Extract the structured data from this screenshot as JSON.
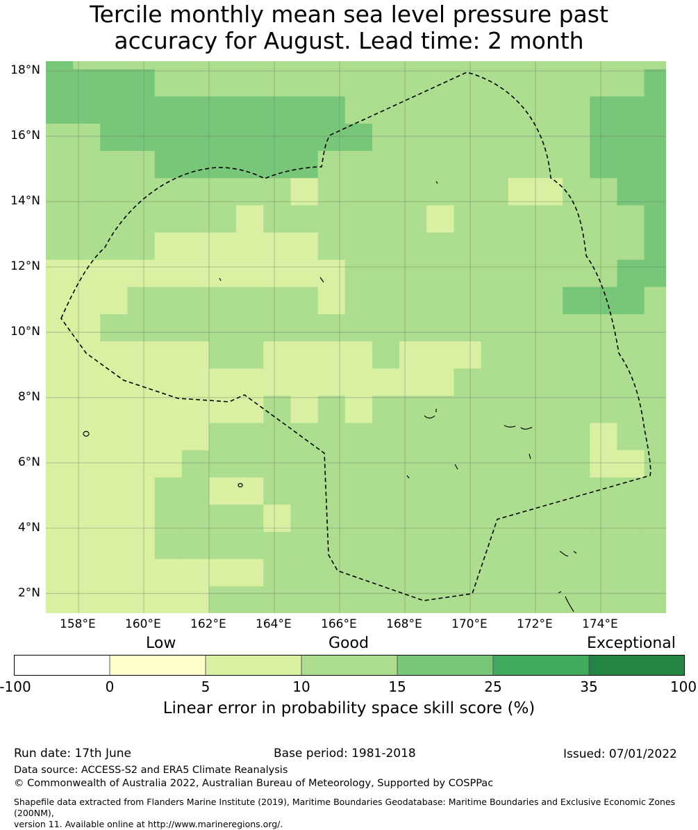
{
  "title": {
    "line1": "Tercile monthly mean sea level pressure past",
    "line2": "accuracy for August. Lead time: 2 month"
  },
  "map": {
    "x_ticks": [
      "158°E",
      "160°E",
      "162°E",
      "164°E",
      "166°E",
      "168°E",
      "170°E",
      "172°E",
      "174°E"
    ],
    "x_tick_values": [
      158,
      160,
      162,
      164,
      166,
      168,
      170,
      172,
      174
    ],
    "y_ticks": [
      "18°N",
      "16°N",
      "14°N",
      "12°N",
      "10°N",
      "8°N",
      "6°N",
      "4°N",
      "2°N"
    ],
    "y_tick_values": [
      18,
      16,
      14,
      12,
      10,
      8,
      6,
      4,
      2
    ],
    "lon_range": [
      157,
      176
    ],
    "lat_range": [
      1.4,
      18.3
    ],
    "grid": true,
    "boundary_style": "dashed",
    "grid_cells": {
      "lon_start": 157,
      "lat_start": 1.4,
      "cell_deg": 0.8333,
      "default_class": 3,
      "rows_from_bottom": [
        [
          2,
          2,
          2,
          2,
          2,
          2,
          3,
          3,
          3,
          3,
          3,
          3,
          3,
          3,
          3,
          3,
          3,
          3,
          3,
          3,
          3,
          3,
          3
        ],
        [
          2,
          2,
          2,
          2,
          2,
          2,
          2,
          2,
          3,
          3,
          3,
          3,
          3,
          3,
          3,
          3,
          3,
          3,
          3,
          3,
          3,
          3,
          3
        ],
        [
          2,
          2,
          2,
          2,
          3,
          3,
          3,
          3,
          3,
          3,
          3,
          3,
          3,
          3,
          3,
          3,
          3,
          3,
          3,
          3,
          3,
          3,
          3
        ],
        [
          2,
          2,
          2,
          2,
          3,
          3,
          3,
          3,
          2,
          3,
          3,
          3,
          3,
          3,
          3,
          3,
          3,
          3,
          3,
          3,
          3,
          3,
          3
        ],
        [
          2,
          2,
          2,
          2,
          3,
          3,
          2,
          2,
          3,
          3,
          3,
          3,
          3,
          3,
          3,
          3,
          3,
          3,
          3,
          3,
          3,
          3,
          3
        ],
        [
          2,
          2,
          2,
          2,
          2,
          3,
          3,
          3,
          3,
          3,
          3,
          3,
          3,
          3,
          3,
          3,
          3,
          3,
          3,
          3,
          2,
          2,
          3
        ],
        [
          2,
          2,
          2,
          2,
          2,
          2,
          3,
          3,
          3,
          3,
          3,
          3,
          3,
          3,
          3,
          3,
          3,
          3,
          3,
          3,
          2,
          3,
          3
        ],
        [
          2,
          2,
          2,
          2,
          2,
          2,
          2,
          2,
          3,
          2,
          3,
          2,
          3,
          3,
          3,
          3,
          3,
          3,
          3,
          3,
          3,
          3,
          3
        ],
        [
          2,
          2,
          2,
          2,
          2,
          2,
          2,
          2,
          2,
          2,
          2,
          2,
          2,
          2,
          2,
          3,
          3,
          3,
          3,
          3,
          3,
          3,
          3
        ],
        [
          2,
          2,
          2,
          2,
          2,
          2,
          3,
          3,
          2,
          2,
          2,
          2,
          3,
          2,
          2,
          2,
          3,
          3,
          3,
          3,
          3,
          3,
          3
        ],
        [
          2,
          2,
          3,
          3,
          3,
          3,
          3,
          3,
          3,
          3,
          3,
          3,
          3,
          3,
          3,
          3,
          3,
          3,
          3,
          3,
          3,
          3,
          3
        ],
        [
          2,
          2,
          2,
          3,
          3,
          3,
          3,
          3,
          3,
          3,
          2,
          3,
          3,
          3,
          3,
          3,
          3,
          3,
          3,
          4,
          4,
          4,
          3
        ],
        [
          2,
          2,
          2,
          2,
          2,
          2,
          2,
          2,
          2,
          2,
          2,
          3,
          3,
          3,
          3,
          3,
          3,
          3,
          3,
          3,
          3,
          4,
          4
        ],
        [
          3,
          3,
          3,
          3,
          2,
          2,
          2,
          2,
          2,
          2,
          3,
          3,
          3,
          3,
          3,
          3,
          3,
          3,
          3,
          3,
          3,
          3,
          4
        ],
        [
          3,
          3,
          3,
          3,
          3,
          3,
          3,
          2,
          3,
          3,
          3,
          3,
          3,
          3,
          2,
          3,
          3,
          3,
          3,
          3,
          3,
          3,
          4
        ],
        [
          3,
          3,
          3,
          3,
          3,
          3,
          3,
          3,
          3,
          2,
          3,
          3,
          3,
          3,
          3,
          3,
          3,
          2,
          2,
          3,
          3,
          4,
          4
        ],
        [
          3,
          3,
          3,
          3,
          4,
          4,
          4,
          4,
          4,
          4,
          3,
          3,
          3,
          3,
          3,
          3,
          3,
          3,
          3,
          3,
          4,
          4,
          4
        ],
        [
          3,
          3,
          4,
          4,
          4,
          4,
          4,
          4,
          4,
          4,
          4,
          4,
          3,
          3,
          3,
          3,
          3,
          3,
          3,
          3,
          4,
          4,
          4
        ],
        [
          4,
          4,
          4,
          4,
          4,
          4,
          4,
          4,
          4,
          4,
          4,
          3,
          3,
          3,
          3,
          3,
          3,
          3,
          3,
          3,
          4,
          4,
          4
        ],
        [
          4,
          4,
          4,
          4,
          3,
          3,
          3,
          3,
          3,
          3,
          3,
          3,
          3,
          3,
          3,
          3,
          3,
          3,
          3,
          3,
          3,
          3,
          4
        ],
        [
          4,
          3,
          3,
          3,
          3,
          3,
          3,
          3,
          3,
          3,
          3,
          3,
          3,
          3,
          3,
          3,
          3,
          3,
          3,
          3,
          3,
          3,
          3
        ],
        [
          3,
          3,
          3,
          3,
          3,
          3,
          3,
          3,
          3,
          3,
          3,
          3,
          3,
          3,
          3,
          3,
          3,
          3,
          3,
          2,
          3,
          3,
          2
        ]
      ]
    }
  },
  "colorbar": {
    "categories": [
      "Low",
      "Good",
      "Exceptional"
    ],
    "ticks": [
      "-100",
      "0",
      "5",
      "10",
      "15",
      "25",
      "35",
      "100"
    ],
    "colors": [
      "#ffffff",
      "#ffffcc",
      "#d9f0a3",
      "#addd8e",
      "#78c679",
      "#41ab5d",
      "#238443"
    ],
    "label": "Linear error in probability space skill score (%)"
  },
  "footer": {
    "run_date": "Run date: 17th June",
    "base_period": "Base period: 1981-2018",
    "issued": "Issued: 07/01/2022",
    "data_source": "Data source: ACCESS-S2 and ERA5 Climate Reanalysis",
    "copyright": "© Commonwealth of Australia 2022, Australian Bureau of Meteorology, Supported by COSPPac",
    "shapefile_line1": "Shapefile data extracted from Flanders Marine Institute (2019), Maritime Boundaries Geodatabase: Maritime Boundaries and Exclusive Economic Zones (200NM),",
    "shapefile_line2": "version 11. Available online at http://www.marineregions.org/."
  }
}
